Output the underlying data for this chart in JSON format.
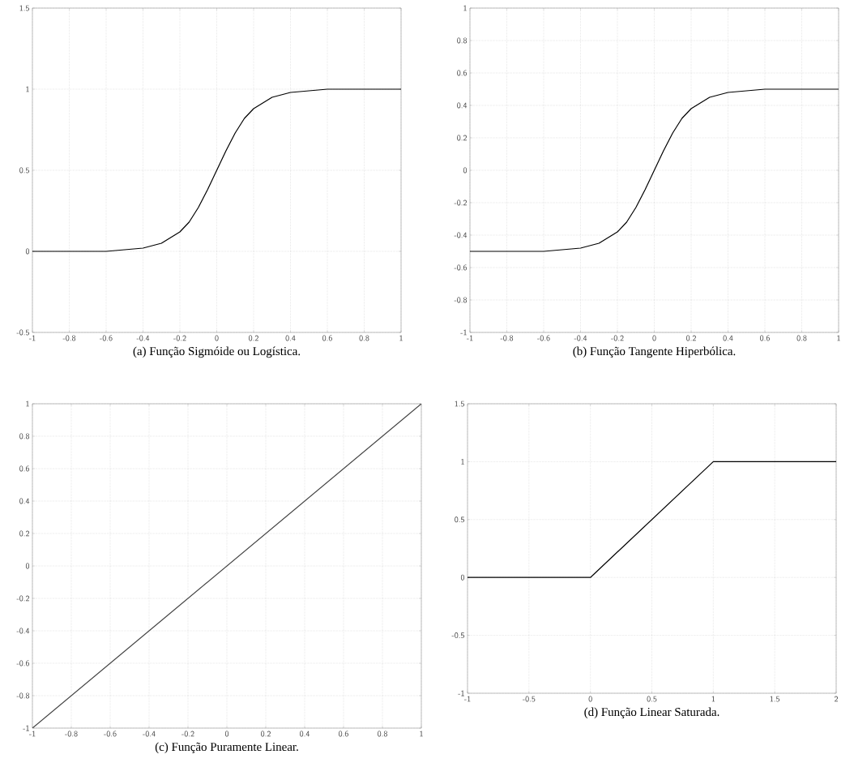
{
  "chart_data": [
    {
      "type": "line",
      "title": "(a) Função Sigmóide ou Logística.",
      "x": [
        -1,
        -0.6,
        -0.5,
        -0.4,
        -0.3,
        -0.2,
        -0.15,
        -0.1,
        -0.05,
        0,
        0.05,
        0.1,
        0.15,
        0.2,
        0.3,
        0.4,
        0.5,
        0.6,
        1
      ],
      "values": [
        0,
        0,
        0.01,
        0.02,
        0.05,
        0.12,
        0.18,
        0.27,
        0.38,
        0.5,
        0.62,
        0.73,
        0.82,
        0.88,
        0.95,
        0.98,
        0.99,
        1,
        1
      ],
      "color": "#000000",
      "xlim": [
        -1,
        1
      ],
      "ylim": [
        -0.5,
        1.5
      ],
      "xticks": [
        -1,
        -0.8,
        -0.6,
        -0.4,
        -0.2,
        0,
        0.2,
        0.4,
        0.6,
        0.8,
        1
      ],
      "yticks": [
        -0.5,
        0,
        0.5,
        1,
        1.5
      ],
      "grid": true
    },
    {
      "type": "line",
      "title": "(b) Função Tangente Hiperbólica.",
      "x": [
        -1,
        -0.6,
        -0.5,
        -0.4,
        -0.3,
        -0.2,
        -0.15,
        -0.1,
        -0.05,
        0,
        0.05,
        0.1,
        0.15,
        0.2,
        0.3,
        0.4,
        0.5,
        0.6,
        1
      ],
      "values": [
        -0.5,
        -0.5,
        -0.49,
        -0.48,
        -0.45,
        -0.38,
        -0.32,
        -0.23,
        -0.12,
        0,
        0.12,
        0.23,
        0.32,
        0.38,
        0.45,
        0.48,
        0.49,
        0.5,
        0.5
      ],
      "color": "#000000",
      "xlim": [
        -1,
        1
      ],
      "ylim": [
        -1,
        1
      ],
      "xticks": [
        -1,
        -0.8,
        -0.6,
        -0.4,
        -0.2,
        0,
        0.2,
        0.4,
        0.6,
        0.8,
        1
      ],
      "yticks": [
        -1,
        -0.8,
        -0.6,
        -0.4,
        -0.2,
        0,
        0.2,
        0.4,
        0.6,
        0.8,
        1
      ],
      "grid": true
    },
    {
      "type": "line",
      "title": "(c) Função Puramente Linear.",
      "x": [
        -1,
        1
      ],
      "values": [
        -1,
        1
      ],
      "color": "#404040",
      "xlim": [
        -1,
        1
      ],
      "ylim": [
        -1,
        1
      ],
      "xticks": [
        -1,
        -0.8,
        -0.6,
        -0.4,
        -0.2,
        0,
        0.2,
        0.4,
        0.6,
        0.8,
        1
      ],
      "yticks": [
        -1,
        -0.8,
        -0.6,
        -0.4,
        -0.2,
        0,
        0.2,
        0.4,
        0.6,
        0.8,
        1
      ],
      "grid": true
    },
    {
      "type": "line",
      "title": "(d) Função Linear Saturada.",
      "x": [
        -1,
        0,
        1,
        2
      ],
      "values": [
        0,
        0,
        1,
        1
      ],
      "color": "#000000",
      "xlim": [
        -1,
        2
      ],
      "ylim": [
        -1,
        1.5
      ],
      "xticks": [
        -1,
        -0.5,
        0,
        0.5,
        1,
        1.5,
        2
      ],
      "yticks": [
        -1,
        -0.5,
        0,
        0.5,
        1,
        1.5
      ],
      "grid": true
    }
  ]
}
